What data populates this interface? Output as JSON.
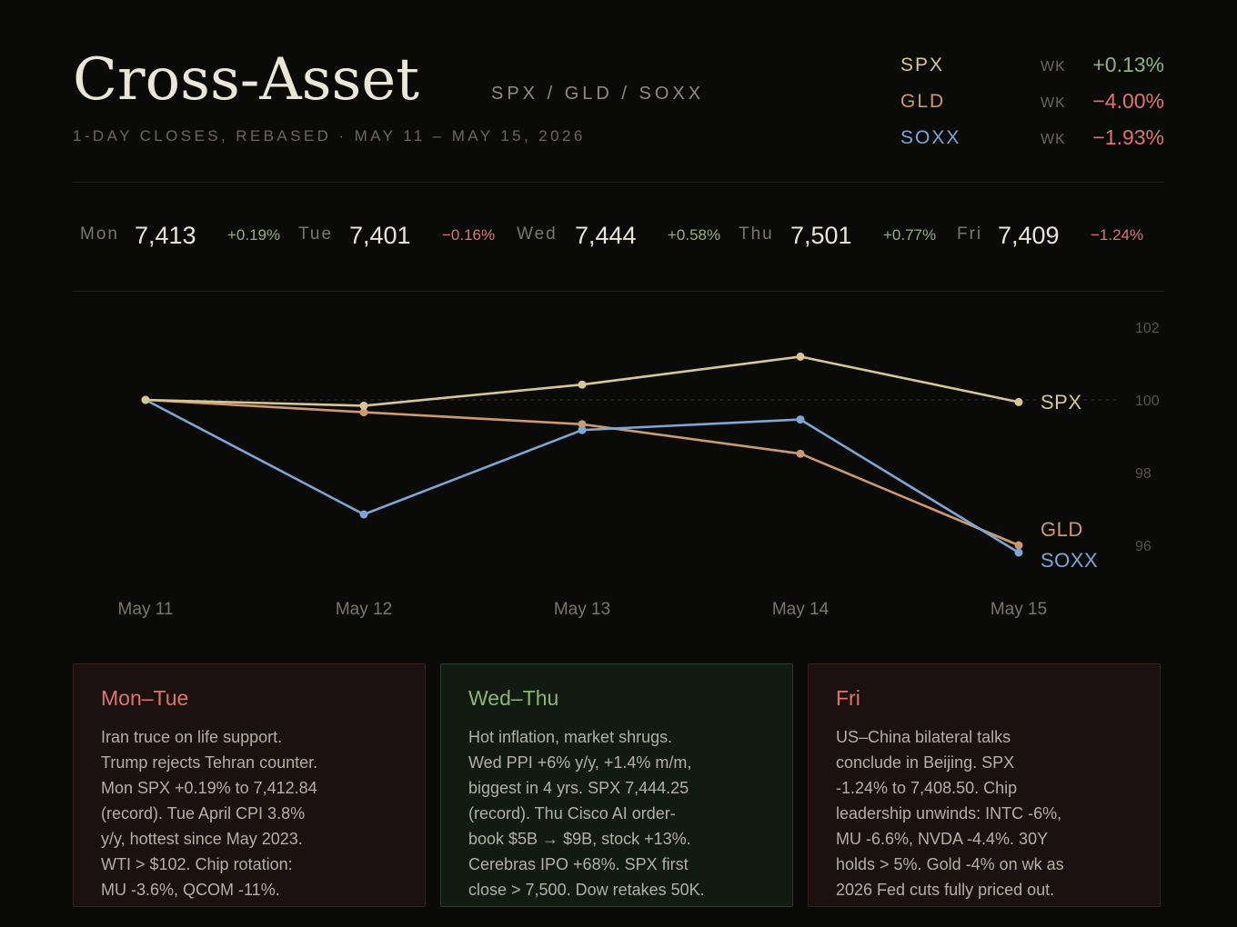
{
  "header": {
    "title": "Cross-Asset",
    "tickers": "SPX / GLD / SOXX",
    "subtitle": "1-DAY CLOSES, REBASED · MAY 11 – MAY 15, 2026"
  },
  "colors": {
    "SPX": "#d8c695",
    "GLD": "#cc9a6c",
    "SOXX": "#7ea6d4",
    "positive": "#8fb573",
    "negative": "#e07468"
  },
  "weekly": [
    {
      "ticker": "SPX",
      "label": "WK",
      "change": "+0.13%",
      "direction": "up"
    },
    {
      "ticker": "GLD",
      "label": "WK",
      "change": "−4.00%",
      "direction": "down"
    },
    {
      "ticker": "SOXX",
      "label": "WK",
      "change": "−1.93%",
      "direction": "down"
    }
  ],
  "days": [
    {
      "name": "Mon",
      "close": "7,413",
      "change": "+0.19%",
      "direction": "up"
    },
    {
      "name": "Tue",
      "close": "7,401",
      "change": "−0.16%",
      "direction": "down"
    },
    {
      "name": "Wed",
      "close": "7,444",
      "change": "+0.58%",
      "direction": "up"
    },
    {
      "name": "Thu",
      "close": "7,501",
      "change": "+0.77%",
      "direction": "up"
    },
    {
      "name": "Fri",
      "close": "7,409",
      "change": "−1.24%",
      "direction": "down"
    }
  ],
  "chart_data": {
    "type": "line",
    "x": [
      "May 11",
      "May 12",
      "May 13",
      "May 14",
      "May 15"
    ],
    "ylim": [
      95,
      102.5
    ],
    "yticks": [
      "102",
      "100",
      "98",
      "96"
    ],
    "reference_line": 100,
    "grid": false,
    "legend": "end-of-line labels",
    "series": [
      {
        "name": "SPX",
        "values": [
          100,
          99.84,
          100.42,
          101.19,
          99.94
        ]
      },
      {
        "name": "GLD",
        "values": [
          100,
          99.66,
          99.33,
          98.52,
          96.0
        ]
      },
      {
        "name": "SOXX",
        "values": [
          100,
          96.85,
          99.17,
          99.46,
          95.8
        ]
      }
    ]
  },
  "cards": [
    {
      "title": "Mon–Tue",
      "tone": "negative",
      "lines": [
        "Iran truce on life support.",
        "Trump rejects Tehran counter.",
        "Mon SPX +0.19% to 7,412.84",
        "(record). Tue April CPI 3.8%",
        "y/y, hottest since May 2023.",
        "WTI > $102. Chip rotation:",
        "MU -3.6%, QCOM -11%."
      ]
    },
    {
      "title": "Wed–Thu",
      "tone": "positive",
      "lines": [
        "Hot inflation, market shrugs.",
        "Wed PPI +6% y/y, +1.4% m/m,",
        "biggest in 4 yrs. SPX 7,444.25",
        "(record). Thu Cisco AI order-",
        "book $5B → $9B, stock +13%.",
        "Cerebras IPO +68%. SPX first",
        "close > 7,500. Dow retakes 50K."
      ]
    },
    {
      "title": "Fri",
      "tone": "negative",
      "lines": [
        "US–China bilateral talks",
        "conclude in Beijing. SPX",
        "-1.24% to 7,408.50. Chip",
        "leadership unwinds: INTC -6%,",
        "MU -6.6%, NVDA -4.4%. 30Y",
        "holds > 5%. Gold -4% on wk as",
        "2026 Fed cuts fully priced out."
      ]
    }
  ]
}
